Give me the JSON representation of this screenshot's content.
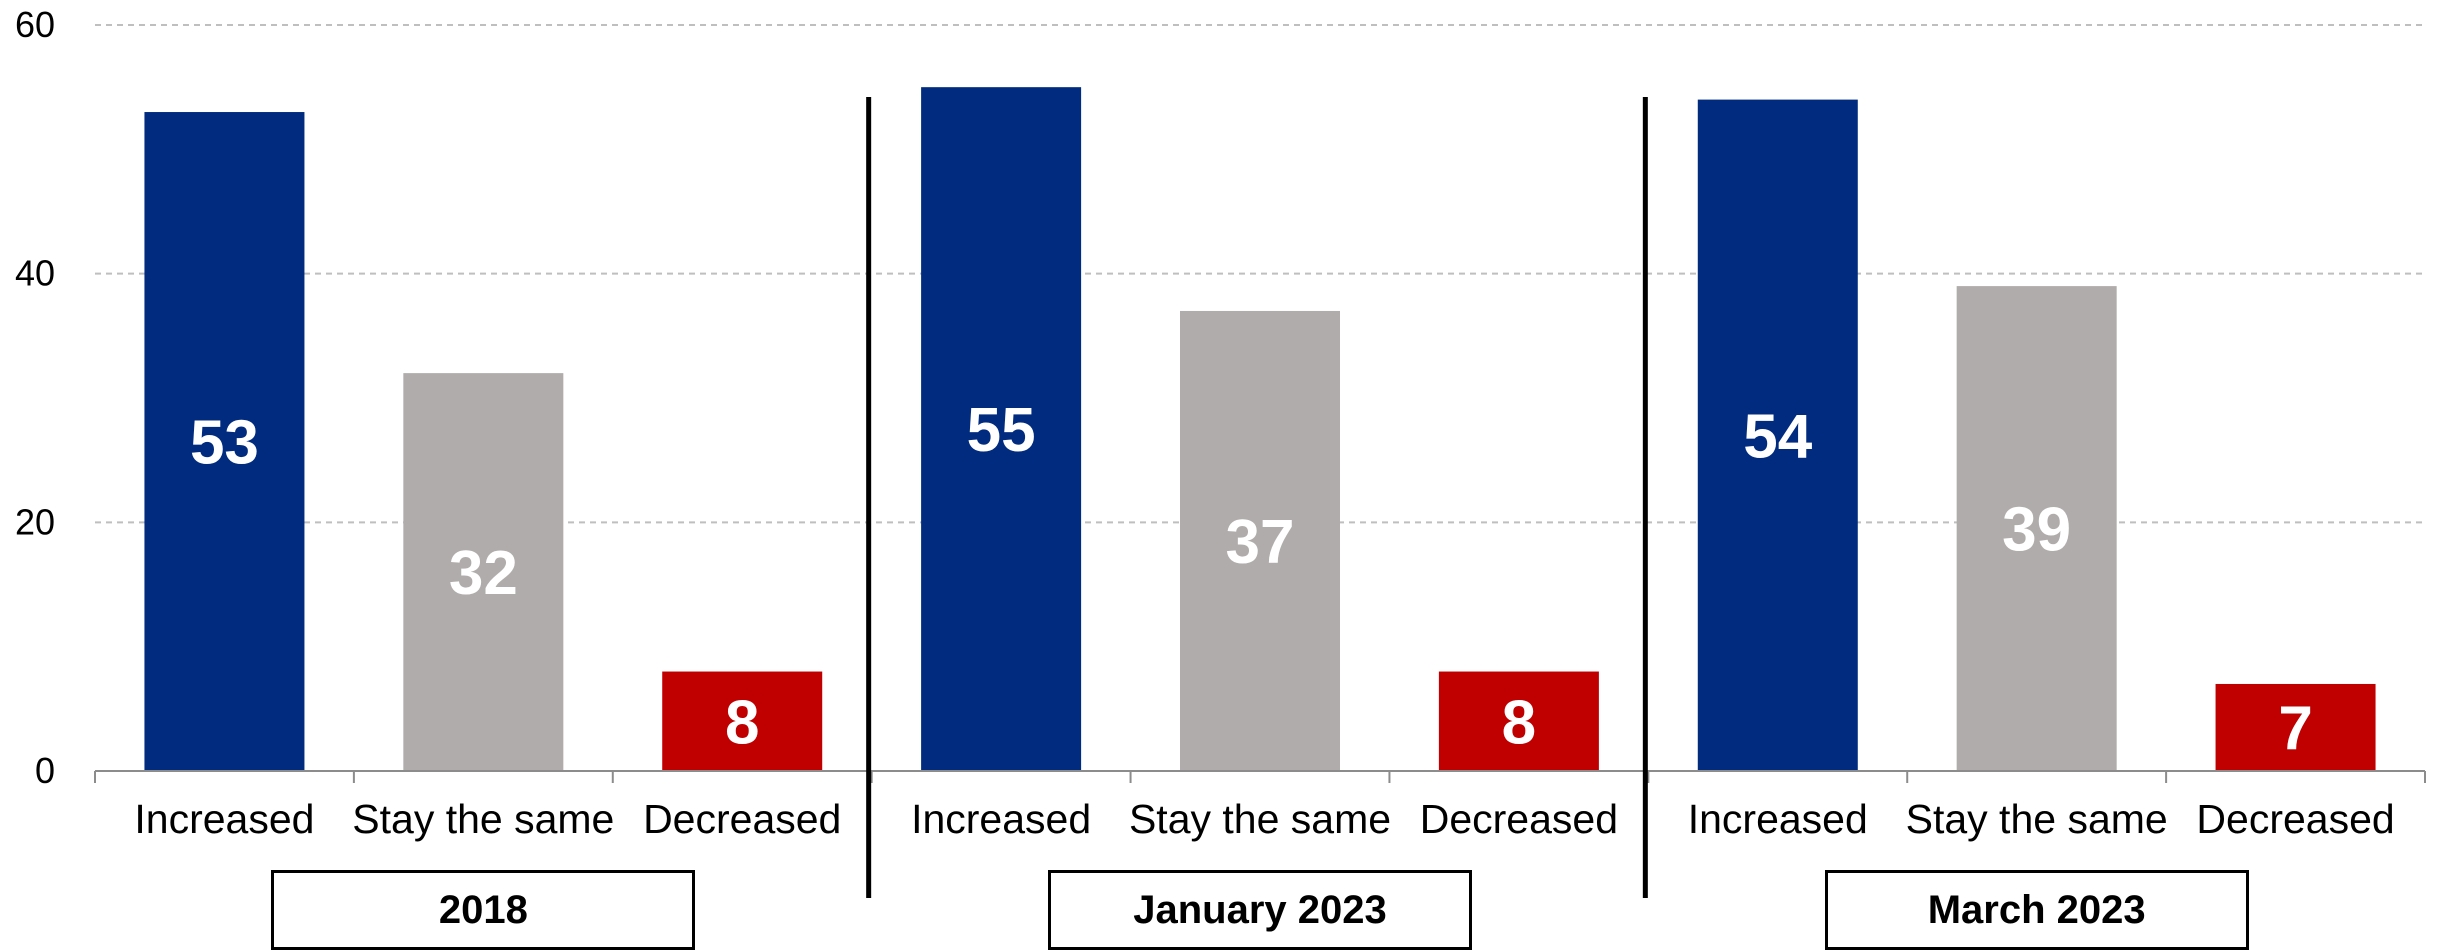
{
  "chart_data": {
    "type": "bar",
    "ylim": [
      0,
      60
    ],
    "yticks": [
      "0",
      "20",
      "40",
      "60"
    ],
    "grid": true,
    "colors": {
      "Increased": "#002b7f",
      "Stay the same": "#b0acab",
      "Decreased": "#c00000",
      "grid": "#bfbfbf",
      "axis": "#8c8c8c"
    },
    "groups": [
      {
        "label": "2018",
        "categories": [
          "Increased",
          "Stay the same",
          "Decreased"
        ],
        "values": [
          53,
          32,
          8
        ],
        "value_labels": [
          "53",
          "32",
          "8"
        ]
      },
      {
        "label": "January 2023",
        "categories": [
          "Increased",
          "Stay the same",
          "Decreased"
        ],
        "values": [
          55,
          37,
          8
        ],
        "value_labels": [
          "55",
          "37",
          "8"
        ]
      },
      {
        "label": "March 2023",
        "categories": [
          "Increased",
          "Stay the same",
          "Decreased"
        ],
        "values": [
          54,
          39,
          7
        ],
        "value_labels": [
          "54",
          "39",
          "7"
        ]
      }
    ]
  }
}
